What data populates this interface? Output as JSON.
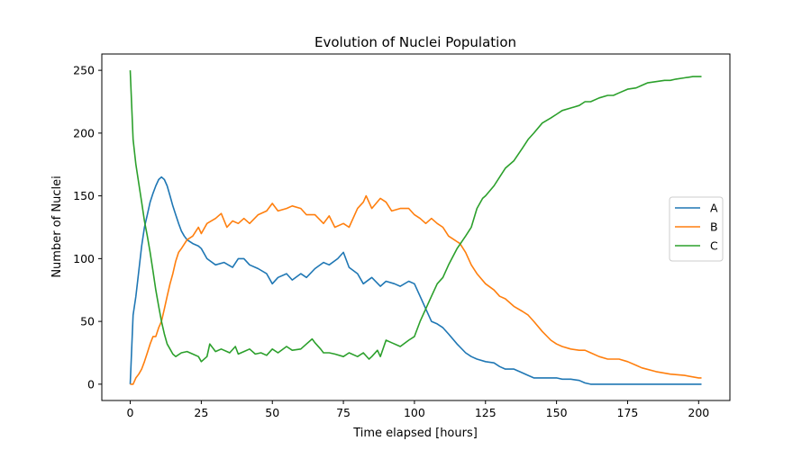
{
  "chart_data": {
    "type": "line",
    "title": "Evolution of Nuclei Population",
    "xlabel": "Time elapsed [hours]",
    "ylabel": "Number of Nuclei",
    "xlim": [
      -10,
      211
    ],
    "ylim": [
      -13,
      263
    ],
    "xticks": [
      0,
      25,
      50,
      75,
      100,
      125,
      150,
      175,
      200
    ],
    "yticks": [
      0,
      50,
      100,
      150,
      200,
      250
    ],
    "grid": false,
    "legend_position": "center-right",
    "series": [
      {
        "name": "A",
        "color": "#1f77b4",
        "points": [
          [
            0,
            0
          ],
          [
            1,
            55
          ],
          [
            2,
            70
          ],
          [
            3,
            90
          ],
          [
            4,
            110
          ],
          [
            5,
            125
          ],
          [
            6,
            135
          ],
          [
            7,
            145
          ],
          [
            8,
            152
          ],
          [
            9,
            158
          ],
          [
            10,
            163
          ],
          [
            11,
            165
          ],
          [
            12,
            163
          ],
          [
            13,
            158
          ],
          [
            14,
            150
          ],
          [
            15,
            142
          ],
          [
            16,
            135
          ],
          [
            17,
            128
          ],
          [
            18,
            122
          ],
          [
            19,
            118
          ],
          [
            20,
            115
          ],
          [
            22,
            112
          ],
          [
            24,
            110
          ],
          [
            25,
            108
          ],
          [
            27,
            100
          ],
          [
            30,
            95
          ],
          [
            33,
            97
          ],
          [
            36,
            93
          ],
          [
            38,
            100
          ],
          [
            40,
            100
          ],
          [
            42,
            95
          ],
          [
            45,
            92
          ],
          [
            48,
            88
          ],
          [
            50,
            80
          ],
          [
            52,
            85
          ],
          [
            55,
            88
          ],
          [
            57,
            83
          ],
          [
            60,
            88
          ],
          [
            62,
            85
          ],
          [
            65,
            92
          ],
          [
            68,
            97
          ],
          [
            70,
            95
          ],
          [
            73,
            100
          ],
          [
            75,
            105
          ],
          [
            77,
            93
          ],
          [
            80,
            88
          ],
          [
            82,
            80
          ],
          [
            85,
            85
          ],
          [
            88,
            78
          ],
          [
            90,
            82
          ],
          [
            93,
            80
          ],
          [
            95,
            78
          ],
          [
            98,
            82
          ],
          [
            100,
            80
          ],
          [
            102,
            70
          ],
          [
            104,
            60
          ],
          [
            106,
            50
          ],
          [
            108,
            48
          ],
          [
            110,
            45
          ],
          [
            112,
            40
          ],
          [
            115,
            32
          ],
          [
            118,
            25
          ],
          [
            120,
            22
          ],
          [
            122,
            20
          ],
          [
            125,
            18
          ],
          [
            128,
            17
          ],
          [
            130,
            14
          ],
          [
            132,
            12
          ],
          [
            135,
            12
          ],
          [
            137,
            10
          ],
          [
            140,
            7
          ],
          [
            142,
            5
          ],
          [
            145,
            5
          ],
          [
            148,
            5
          ],
          [
            150,
            5
          ],
          [
            152,
            4
          ],
          [
            155,
            4
          ],
          [
            158,
            3
          ],
          [
            160,
            1
          ],
          [
            162,
            0
          ],
          [
            165,
            0
          ],
          [
            170,
            0
          ],
          [
            180,
            0
          ],
          [
            190,
            0
          ],
          [
            200,
            0
          ],
          [
            201,
            0
          ]
        ]
      },
      {
        "name": "B",
        "color": "#ff7f0e",
        "points": [
          [
            0,
            0
          ],
          [
            1,
            0
          ],
          [
            2,
            5
          ],
          [
            3,
            8
          ],
          [
            4,
            12
          ],
          [
            5,
            18
          ],
          [
            6,
            25
          ],
          [
            7,
            32
          ],
          [
            8,
            38
          ],
          [
            9,
            38
          ],
          [
            10,
            45
          ],
          [
            11,
            50
          ],
          [
            12,
            60
          ],
          [
            13,
            70
          ],
          [
            14,
            80
          ],
          [
            15,
            88
          ],
          [
            16,
            98
          ],
          [
            17,
            105
          ],
          [
            18,
            108
          ],
          [
            20,
            115
          ],
          [
            22,
            118
          ],
          [
            24,
            125
          ],
          [
            25,
            120
          ],
          [
            27,
            128
          ],
          [
            30,
            132
          ],
          [
            32,
            136
          ],
          [
            34,
            125
          ],
          [
            36,
            130
          ],
          [
            38,
            128
          ],
          [
            40,
            132
          ],
          [
            42,
            128
          ],
          [
            45,
            135
          ],
          [
            48,
            138
          ],
          [
            50,
            144
          ],
          [
            52,
            138
          ],
          [
            55,
            140
          ],
          [
            57,
            142
          ],
          [
            60,
            140
          ],
          [
            62,
            135
          ],
          [
            65,
            135
          ],
          [
            68,
            128
          ],
          [
            70,
            134
          ],
          [
            72,
            125
          ],
          [
            75,
            128
          ],
          [
            77,
            125
          ],
          [
            80,
            140
          ],
          [
            82,
            145
          ],
          [
            83,
            150
          ],
          [
            85,
            140
          ],
          [
            88,
            148
          ],
          [
            90,
            145
          ],
          [
            92,
            138
          ],
          [
            95,
            140
          ],
          [
            98,
            140
          ],
          [
            100,
            135
          ],
          [
            102,
            132
          ],
          [
            104,
            128
          ],
          [
            106,
            132
          ],
          [
            108,
            128
          ],
          [
            110,
            125
          ],
          [
            112,
            118
          ],
          [
            114,
            115
          ],
          [
            116,
            112
          ],
          [
            118,
            105
          ],
          [
            120,
            95
          ],
          [
            122,
            88
          ],
          [
            125,
            80
          ],
          [
            128,
            75
          ],
          [
            130,
            70
          ],
          [
            132,
            68
          ],
          [
            135,
            62
          ],
          [
            138,
            58
          ],
          [
            140,
            55
          ],
          [
            142,
            50
          ],
          [
            145,
            42
          ],
          [
            148,
            35
          ],
          [
            150,
            32
          ],
          [
            152,
            30
          ],
          [
            155,
            28
          ],
          [
            158,
            27
          ],
          [
            160,
            27
          ],
          [
            162,
            25
          ],
          [
            165,
            22
          ],
          [
            168,
            20
          ],
          [
            170,
            20
          ],
          [
            172,
            20
          ],
          [
            175,
            18
          ],
          [
            178,
            15
          ],
          [
            180,
            13
          ],
          [
            185,
            10
          ],
          [
            190,
            8
          ],
          [
            195,
            7
          ],
          [
            200,
            5
          ],
          [
            201,
            5
          ]
        ]
      },
      {
        "name": "C",
        "color": "#2ca02c",
        "points": [
          [
            0,
            250
          ],
          [
            1,
            195
          ],
          [
            2,
            175
          ],
          [
            3,
            160
          ],
          [
            4,
            145
          ],
          [
            5,
            130
          ],
          [
            6,
            118
          ],
          [
            7,
            105
          ],
          [
            8,
            90
          ],
          [
            9,
            75
          ],
          [
            10,
            62
          ],
          [
            11,
            50
          ],
          [
            12,
            40
          ],
          [
            13,
            32
          ],
          [
            14,
            28
          ],
          [
            15,
            24
          ],
          [
            16,
            22
          ],
          [
            18,
            25
          ],
          [
            20,
            26
          ],
          [
            22,
            24
          ],
          [
            24,
            22
          ],
          [
            25,
            18
          ],
          [
            27,
            22
          ],
          [
            28,
            32
          ],
          [
            30,
            26
          ],
          [
            32,
            28
          ],
          [
            35,
            25
          ],
          [
            37,
            30
          ],
          [
            38,
            24
          ],
          [
            40,
            26
          ],
          [
            42,
            28
          ],
          [
            44,
            24
          ],
          [
            46,
            25
          ],
          [
            48,
            23
          ],
          [
            50,
            28
          ],
          [
            52,
            25
          ],
          [
            55,
            30
          ],
          [
            57,
            27
          ],
          [
            60,
            28
          ],
          [
            62,
            32
          ],
          [
            64,
            36
          ],
          [
            65,
            33
          ],
          [
            67,
            28
          ],
          [
            68,
            25
          ],
          [
            70,
            25
          ],
          [
            72,
            24
          ],
          [
            75,
            22
          ],
          [
            77,
            25
          ],
          [
            80,
            22
          ],
          [
            82,
            25
          ],
          [
            84,
            20
          ],
          [
            85,
            22
          ],
          [
            87,
            27
          ],
          [
            88,
            22
          ],
          [
            90,
            35
          ],
          [
            92,
            33
          ],
          [
            95,
            30
          ],
          [
            98,
            35
          ],
          [
            100,
            38
          ],
          [
            102,
            50
          ],
          [
            104,
            60
          ],
          [
            106,
            70
          ],
          [
            108,
            80
          ],
          [
            110,
            85
          ],
          [
            112,
            95
          ],
          [
            115,
            108
          ],
          [
            118,
            118
          ],
          [
            120,
            125
          ],
          [
            122,
            140
          ],
          [
            124,
            148
          ],
          [
            125,
            150
          ],
          [
            128,
            158
          ],
          [
            130,
            165
          ],
          [
            132,
            172
          ],
          [
            135,
            178
          ],
          [
            138,
            188
          ],
          [
            140,
            195
          ],
          [
            142,
            200
          ],
          [
            145,
            208
          ],
          [
            148,
            212
          ],
          [
            150,
            215
          ],
          [
            152,
            218
          ],
          [
            155,
            220
          ],
          [
            158,
            222
          ],
          [
            160,
            225
          ],
          [
            162,
            225
          ],
          [
            165,
            228
          ],
          [
            168,
            230
          ],
          [
            170,
            230
          ],
          [
            172,
            232
          ],
          [
            175,
            235
          ],
          [
            178,
            236
          ],
          [
            180,
            238
          ],
          [
            182,
            240
          ],
          [
            185,
            241
          ],
          [
            188,
            242
          ],
          [
            190,
            242
          ],
          [
            192,
            243
          ],
          [
            195,
            244
          ],
          [
            198,
            245
          ],
          [
            200,
            245
          ],
          [
            201,
            245
          ]
        ]
      }
    ]
  }
}
